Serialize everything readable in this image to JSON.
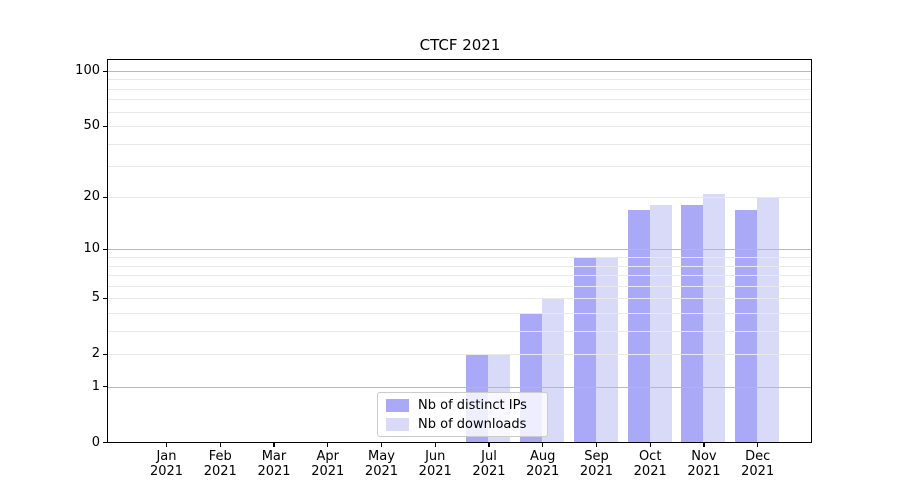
{
  "chart_data": {
    "type": "bar",
    "title": "CTCF 2021",
    "categories": [
      "Jan",
      "Feb",
      "Mar",
      "Apr",
      "May",
      "Jun",
      "Jul",
      "Aug",
      "Sep",
      "Oct",
      "Nov",
      "Dec"
    ],
    "year": "2021",
    "series": [
      {
        "name": "Nb of distinct IPs",
        "color": "#a9a9f8",
        "values": [
          0,
          0,
          0,
          0,
          0,
          0,
          2,
          4,
          9,
          17,
          18,
          17
        ]
      },
      {
        "name": "Nb of downloads",
        "color": "#d9d9f8",
        "values": [
          0,
          0,
          0,
          0,
          0,
          0,
          2,
          5,
          9,
          18,
          21,
          20
        ]
      }
    ],
    "yscale": "log1p",
    "ylim": [
      0,
      116
    ],
    "ytick_values": [
      100,
      50,
      20,
      10,
      5,
      2,
      1,
      0
    ],
    "ytick_labels": [
      "100",
      "50",
      "20",
      "10",
      "5",
      "2",
      "1",
      "0"
    ],
    "major_grid_values": [
      1,
      10,
      100
    ],
    "minor_grid_values": [
      2,
      3,
      4,
      5,
      6,
      7,
      8,
      9,
      20,
      30,
      40,
      50,
      60,
      70,
      80,
      90
    ],
    "grid": true,
    "legend_position": "inside-bottom-center"
  },
  "colors": {
    "bar_distinct_ips": "#a9a9f8",
    "bar_downloads": "#d9d9f8",
    "major_grid": "#b9b9b9",
    "minor_grid": "#e9e9e9",
    "spine": "#000000",
    "legend_border": "#cccccc",
    "background": "#ffffff"
  }
}
